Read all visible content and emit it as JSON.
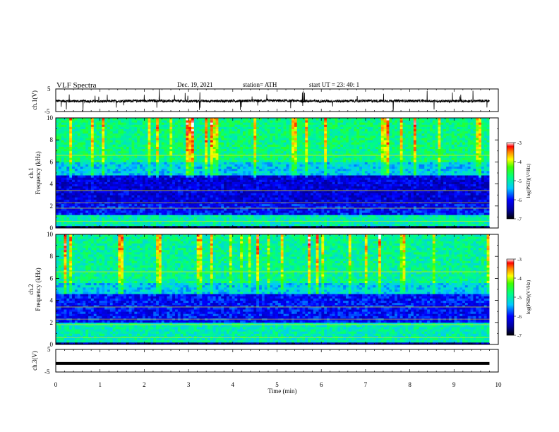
{
  "header": {
    "title": "VLF  Spectra",
    "date": "Dec. 19,  2021",
    "station": "station= ATH",
    "start": "start  UT  =    23: 40: 1"
  },
  "chart_data": {
    "type": "heatmap",
    "time_axis": {
      "label": "Time  (min)",
      "range": [
        0,
        10
      ],
      "ticks": [
        "0",
        "1",
        "2",
        "3",
        "4",
        "5",
        "6",
        "7",
        "8",
        "9",
        "10"
      ]
    },
    "panels": [
      {
        "id": "ch1_waveform",
        "type": "line",
        "ylabel": "ch.1(V)",
        "ylim": [
          -5,
          5
        ],
        "yticks": [
          "5",
          "-5"
        ],
        "baseline_v": -0.3,
        "data_extent_min": [
          0,
          9.8
        ],
        "series": {
          "description_points": [
            [
              0,
              -0.3
            ],
            [
              1,
              -0.5
            ],
            [
              2,
              -0.2
            ],
            [
              3,
              -0.4
            ],
            [
              4,
              -0.3
            ],
            [
              5,
              -0.2
            ],
            [
              6,
              -0.4
            ],
            [
              7,
              -0.3
            ],
            [
              8,
              -0.3
            ],
            [
              9,
              -0.4
            ],
            [
              9.8,
              -0.3
            ]
          ]
        }
      },
      {
        "id": "ch1_spectrogram",
        "type": "heatmap",
        "ylabel": "ch.1\nFrequency  (kHz)",
        "ylim": [
          0,
          10
        ],
        "yticks": [
          "0",
          "2",
          "4",
          "6",
          "8",
          "10"
        ],
        "z_label": "log(PSD)(V²/Hz)",
        "z_range": [
          -7,
          -3
        ],
        "z_ticks": [
          "-3",
          "-4",
          "-5",
          "-6",
          "-7"
        ],
        "bands_khz": [
          {
            "from": 0,
            "to": 0.2,
            "level": -6.8
          },
          {
            "from": 0.2,
            "to": 1.2,
            "level": -5.0
          },
          {
            "from": 1.2,
            "to": 2.2,
            "level": -6.0
          },
          {
            "from": 2.2,
            "to": 4.8,
            "level": -6.2
          },
          {
            "from": 4.8,
            "to": 6.0,
            "level": -5.3
          },
          {
            "from": 6.0,
            "to": 10,
            "level": -4.8
          }
        ]
      },
      {
        "id": "ch2_spectrogram",
        "type": "heatmap",
        "ylabel": "ch.2\nFrequency  (kHz)",
        "ylim": [
          0,
          10
        ],
        "yticks": [
          "0",
          "2",
          "4",
          "6",
          "8",
          "10"
        ],
        "z_label": "log(PSD)(V²/Hz)",
        "z_range": [
          -7,
          -3
        ],
        "z_ticks": [
          "-3",
          "-4",
          "-5",
          "-6",
          "-7"
        ],
        "bands_khz": [
          {
            "from": 0,
            "to": 0.3,
            "level": -6.5
          },
          {
            "from": 0.3,
            "to": 2.0,
            "level": -5.0
          },
          {
            "from": 2.0,
            "to": 4.6,
            "level": -6.0
          },
          {
            "from": 4.6,
            "to": 5.6,
            "level": -5.3
          },
          {
            "from": 5.6,
            "to": 10,
            "level": -4.9
          }
        ]
      },
      {
        "id": "ch3_waveform",
        "type": "line",
        "ylabel": "ch.3(V)",
        "ylim": [
          -5,
          5
        ],
        "yticks": [
          "5",
          "-5"
        ],
        "baseline_v": -1.2,
        "data_extent_min": [
          0,
          9.8
        ]
      }
    ]
  }
}
